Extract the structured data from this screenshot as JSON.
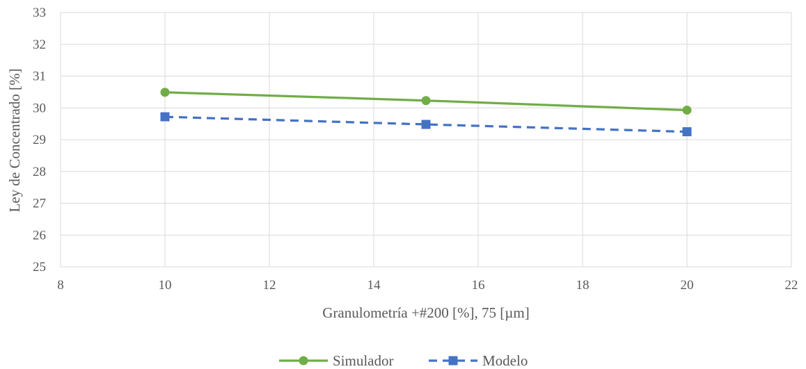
{
  "chart_data": {
    "type": "scatter",
    "title": "",
    "xlabel": "Granulometría +#200 [%], 75 [µm]",
    "ylabel": "Ley de Concentrado [%]",
    "xlim": [
      8,
      22
    ],
    "ylim": [
      25,
      33
    ],
    "xticks": [
      8,
      10,
      12,
      14,
      16,
      18,
      20,
      22
    ],
    "yticks": [
      25,
      26,
      27,
      28,
      29,
      30,
      31,
      32,
      33
    ],
    "grid": true,
    "legend_position": "bottom",
    "series": [
      {
        "name": "Simulador",
        "x": [
          10,
          15,
          20
        ],
        "y": [
          30.49,
          30.23,
          29.93
        ],
        "color": "#70AD47",
        "line_style": "solid",
        "marker": "circle"
      },
      {
        "name": "Modelo",
        "x": [
          10,
          15,
          20
        ],
        "y": [
          29.72,
          29.48,
          29.25
        ],
        "color": "#4472C4",
        "line_style": "dashed",
        "marker": "square"
      }
    ]
  }
}
